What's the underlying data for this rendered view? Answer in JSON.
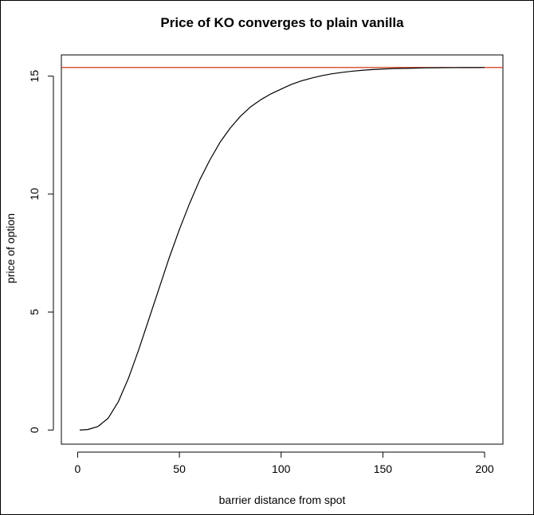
{
  "chart_data": {
    "type": "line",
    "title": "Price of KO converges to plain vanilla",
    "xlabel": "barrier distance from spot",
    "ylabel": "price of option",
    "xlim": [
      -8,
      209
    ],
    "ylim": [
      -0.6,
      15.9
    ],
    "x_ticks": [
      0,
      50,
      100,
      150,
      200
    ],
    "y_ticks": [
      0,
      5,
      10,
      15
    ],
    "grid": false,
    "legend": "none",
    "series": [
      {
        "color": "#000000",
        "x": [
          1,
          5,
          10,
          15,
          20,
          25,
          30,
          35,
          40,
          45,
          50,
          55,
          60,
          65,
          70,
          75,
          80,
          85,
          90,
          95,
          100,
          105,
          110,
          115,
          120,
          125,
          130,
          135,
          140,
          145,
          150,
          155,
          160,
          165,
          170,
          175,
          180,
          185,
          190,
          195,
          200
        ],
        "y": [
          0.0,
          0.02,
          0.15,
          0.5,
          1.2,
          2.2,
          3.4,
          4.7,
          6.0,
          7.3,
          8.5,
          9.6,
          10.6,
          11.45,
          12.2,
          12.8,
          13.3,
          13.7,
          14.0,
          14.25,
          14.45,
          14.65,
          14.8,
          14.92,
          15.02,
          15.1,
          15.16,
          15.21,
          15.25,
          15.28,
          15.3,
          15.32,
          15.33,
          15.34,
          15.35,
          15.355,
          15.36,
          15.362,
          15.364,
          15.365,
          15.366
        ]
      }
    ],
    "reference_line": {
      "y": 15.366,
      "color": "#cc2200"
    }
  }
}
